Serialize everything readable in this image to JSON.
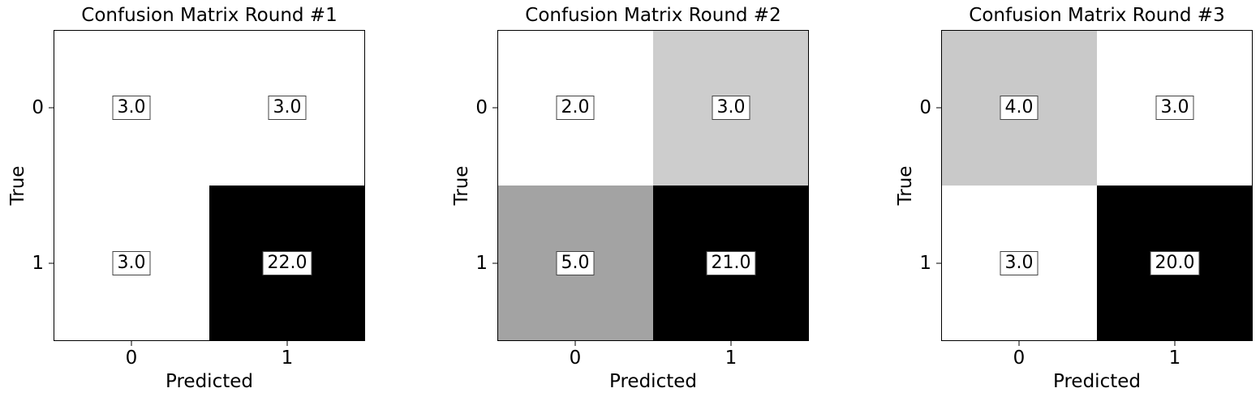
{
  "chart_data": [
    {
      "type": "heatmap",
      "title": "Confusion Matrix Round #1",
      "xlabel": "Predicted",
      "ylabel": "True",
      "x_ticks": [
        "0",
        "1"
      ],
      "y_ticks": [
        "0",
        "1"
      ],
      "matrix": [
        [
          3.0,
          3.0
        ],
        [
          3.0,
          22.0
        ]
      ],
      "labels": [
        [
          "3.0",
          "3.0"
        ],
        [
          "3.0",
          "22.0"
        ]
      ],
      "colormap": "Greys"
    },
    {
      "type": "heatmap",
      "title": "Confusion Matrix Round #2",
      "xlabel": "Predicted",
      "ylabel": "True",
      "x_ticks": [
        "0",
        "1"
      ],
      "y_ticks": [
        "0",
        "1"
      ],
      "matrix": [
        [
          2.0,
          3.0
        ],
        [
          5.0,
          21.0
        ]
      ],
      "labels": [
        [
          "2.0",
          "3.0"
        ],
        [
          "5.0",
          "21.0"
        ]
      ],
      "colormap": "Greys"
    },
    {
      "type": "heatmap",
      "title": "Confusion Matrix Round #3",
      "xlabel": "Predicted",
      "ylabel": "True",
      "x_ticks": [
        "0",
        "1"
      ],
      "y_ticks": [
        "0",
        "1"
      ],
      "matrix": [
        [
          4.0,
          3.0
        ],
        [
          3.0,
          20.0
        ]
      ],
      "labels": [
        [
          "4.0",
          "3.0"
        ],
        [
          "3.0",
          "20.0"
        ]
      ],
      "colormap": "Greys"
    }
  ]
}
